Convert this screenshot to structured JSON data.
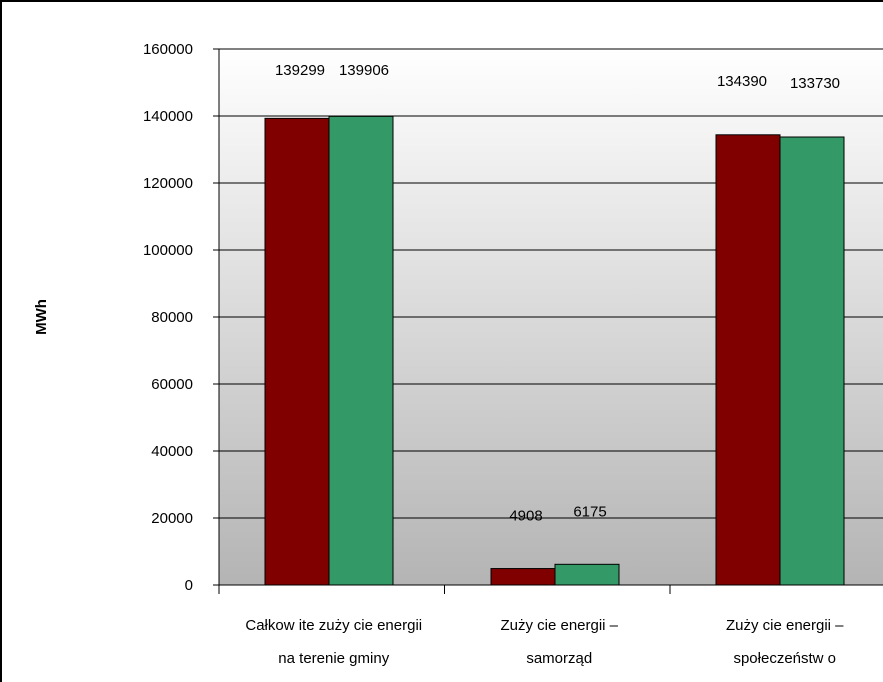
{
  "chart_data": {
    "type": "bar",
    "title": "",
    "xlabel": "",
    "ylabel": "MWh",
    "ylim": [
      0,
      160000
    ],
    "yticks": [
      0,
      20000,
      40000,
      60000,
      80000,
      100000,
      120000,
      140000,
      160000
    ],
    "grid": true,
    "legend": "none",
    "categories": [
      [
        "Całkow ite zuży cie energii",
        "na terenie gminy"
      ],
      [
        "Zuży cie energii –",
        "samorząd"
      ],
      [
        "Zuży cie energii –",
        "społeczeństw o"
      ]
    ],
    "series": [
      {
        "color": "#800000",
        "values": [
          139299,
          4908,
          134390
        ]
      },
      {
        "color": "#339966",
        "values": [
          139906,
          6175,
          133730
        ]
      }
    ]
  }
}
